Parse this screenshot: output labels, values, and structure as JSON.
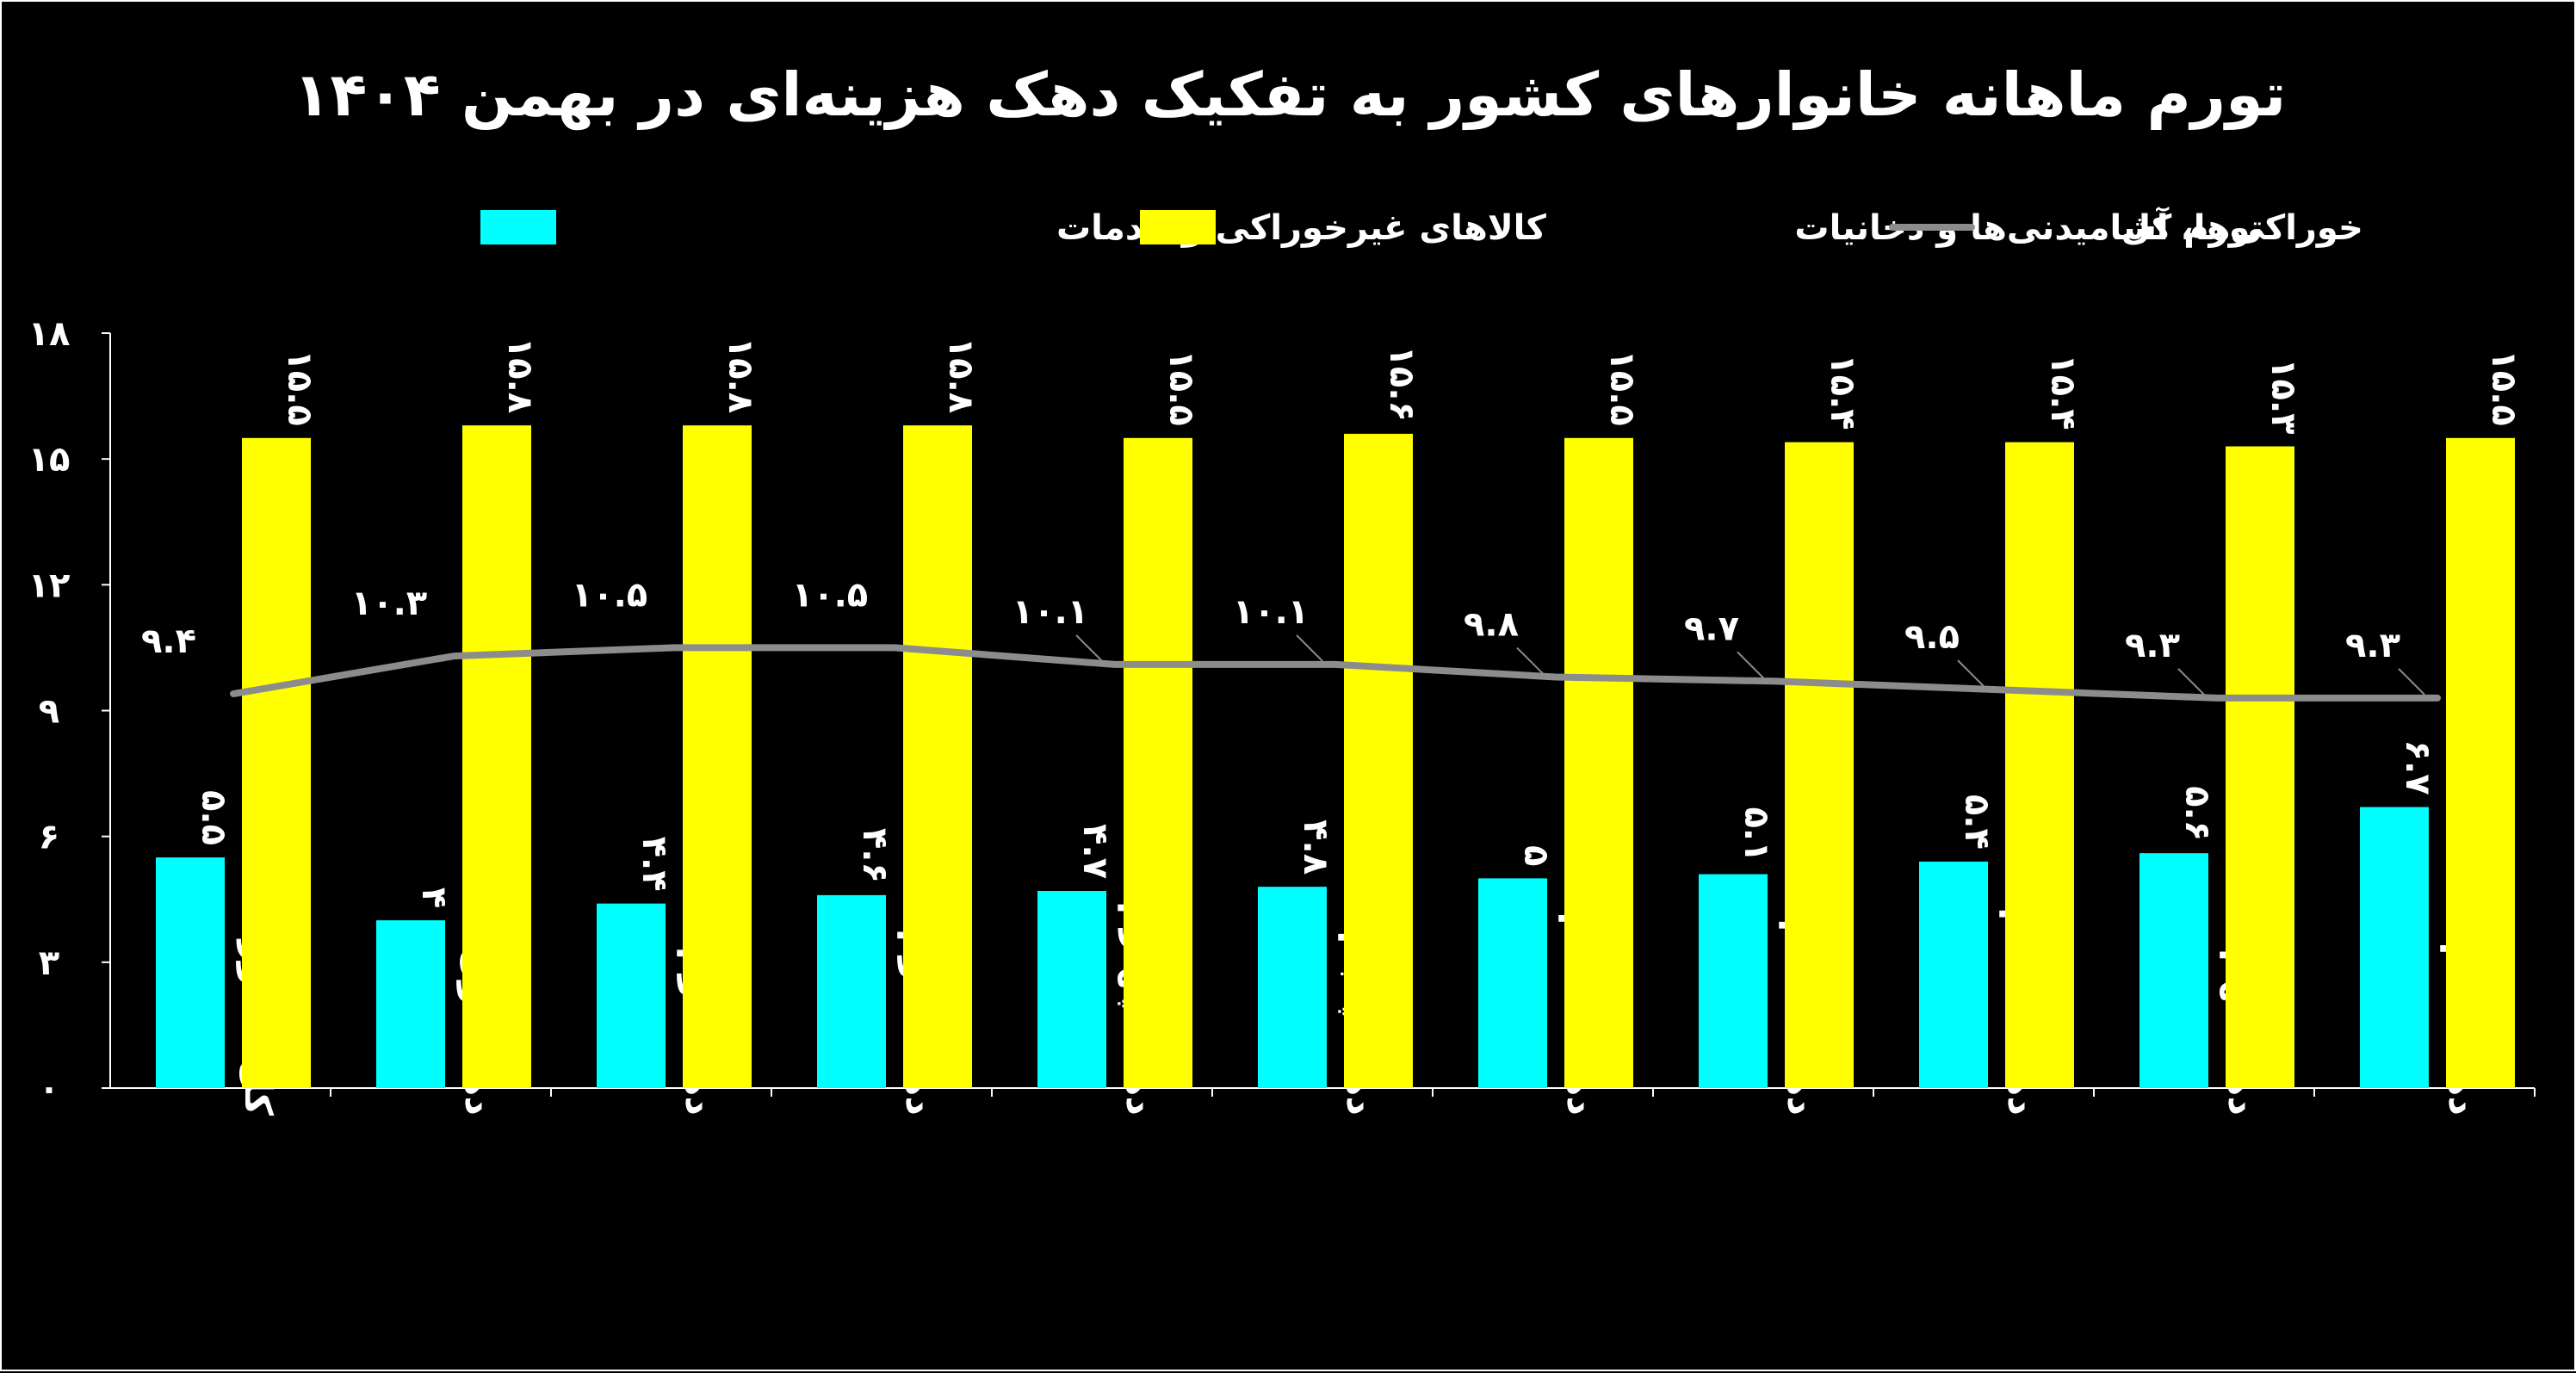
{
  "chart_data": {
    "type": "bar",
    "title": "تورم ماهانه خانوارهای کشور به تفکیک دهک هزینه‌ای در بهمن ۱۴۰۴",
    "categories": [
      "کل کشور",
      "دهک اول",
      "دهک دوم",
      "دهک سوم",
      "دهک چهارم",
      "دهک پنجم",
      "دهک ششم",
      "دهک هفتم",
      "دهک هشتم",
      "دهک نهم",
      "دهک دهم"
    ],
    "series": [
      {
        "name": "کالاهای غیرخوراکی و خدمات",
        "kind": "bar",
        "color": "#00ffff",
        "values": [
          5.5,
          4,
          4.4,
          4.6,
          4.7,
          4.8,
          5,
          5.1,
          5.4,
          5.6,
          6.7
        ],
        "labels": [
          "۵.۵",
          "۴",
          "۴.۴",
          "۴.۶",
          "۴.۷",
          "۴.۸",
          "۵",
          "۵.۱",
          "۵.۴",
          "۵.۶",
          "۶.۷"
        ]
      },
      {
        "name": "خوراکی‌ها، آشامیدنی‌ها و دخانیات",
        "kind": "bar",
        "color": "#ffff00",
        "values": [
          15.5,
          15.8,
          15.8,
          15.8,
          15.5,
          15.6,
          15.5,
          15.4,
          15.4,
          15.3,
          15.5
        ],
        "labels": [
          "۱۵.۵",
          "۱۵.۸",
          "۱۵.۸",
          "۱۵.۸",
          "۱۵.۵",
          "۱۵.۶",
          "۱۵.۵",
          "۱۵.۴",
          "۱۵.۴",
          "۱۵.۳",
          "۱۵.۵"
        ]
      },
      {
        "name": "تورم کل",
        "kind": "line",
        "color": "#8c8c8c",
        "values": [
          9.4,
          10.3,
          10.5,
          10.5,
          10.1,
          10.1,
          9.8,
          9.7,
          9.5,
          9.3,
          9.3
        ],
        "labels": [
          "۹.۴",
          "۱۰.۳",
          "۱۰.۵",
          "۱۰.۵",
          "۱۰.۱",
          "۱۰.۱",
          "۹.۸",
          "۹.۷",
          "۹.۵",
          "۹.۳",
          "۹.۳"
        ]
      }
    ],
    "ylim": [
      0,
      18
    ],
    "yticks": [
      0,
      3,
      6,
      9,
      12,
      15,
      18
    ],
    "ytick_labels": [
      "۰",
      "۳",
      "۶",
      "۹",
      "۱۲",
      "۱۵",
      "۱۸"
    ],
    "xlabel": "",
    "ylabel": "",
    "grid": false,
    "legend_position": "top",
    "background": "#000000"
  }
}
